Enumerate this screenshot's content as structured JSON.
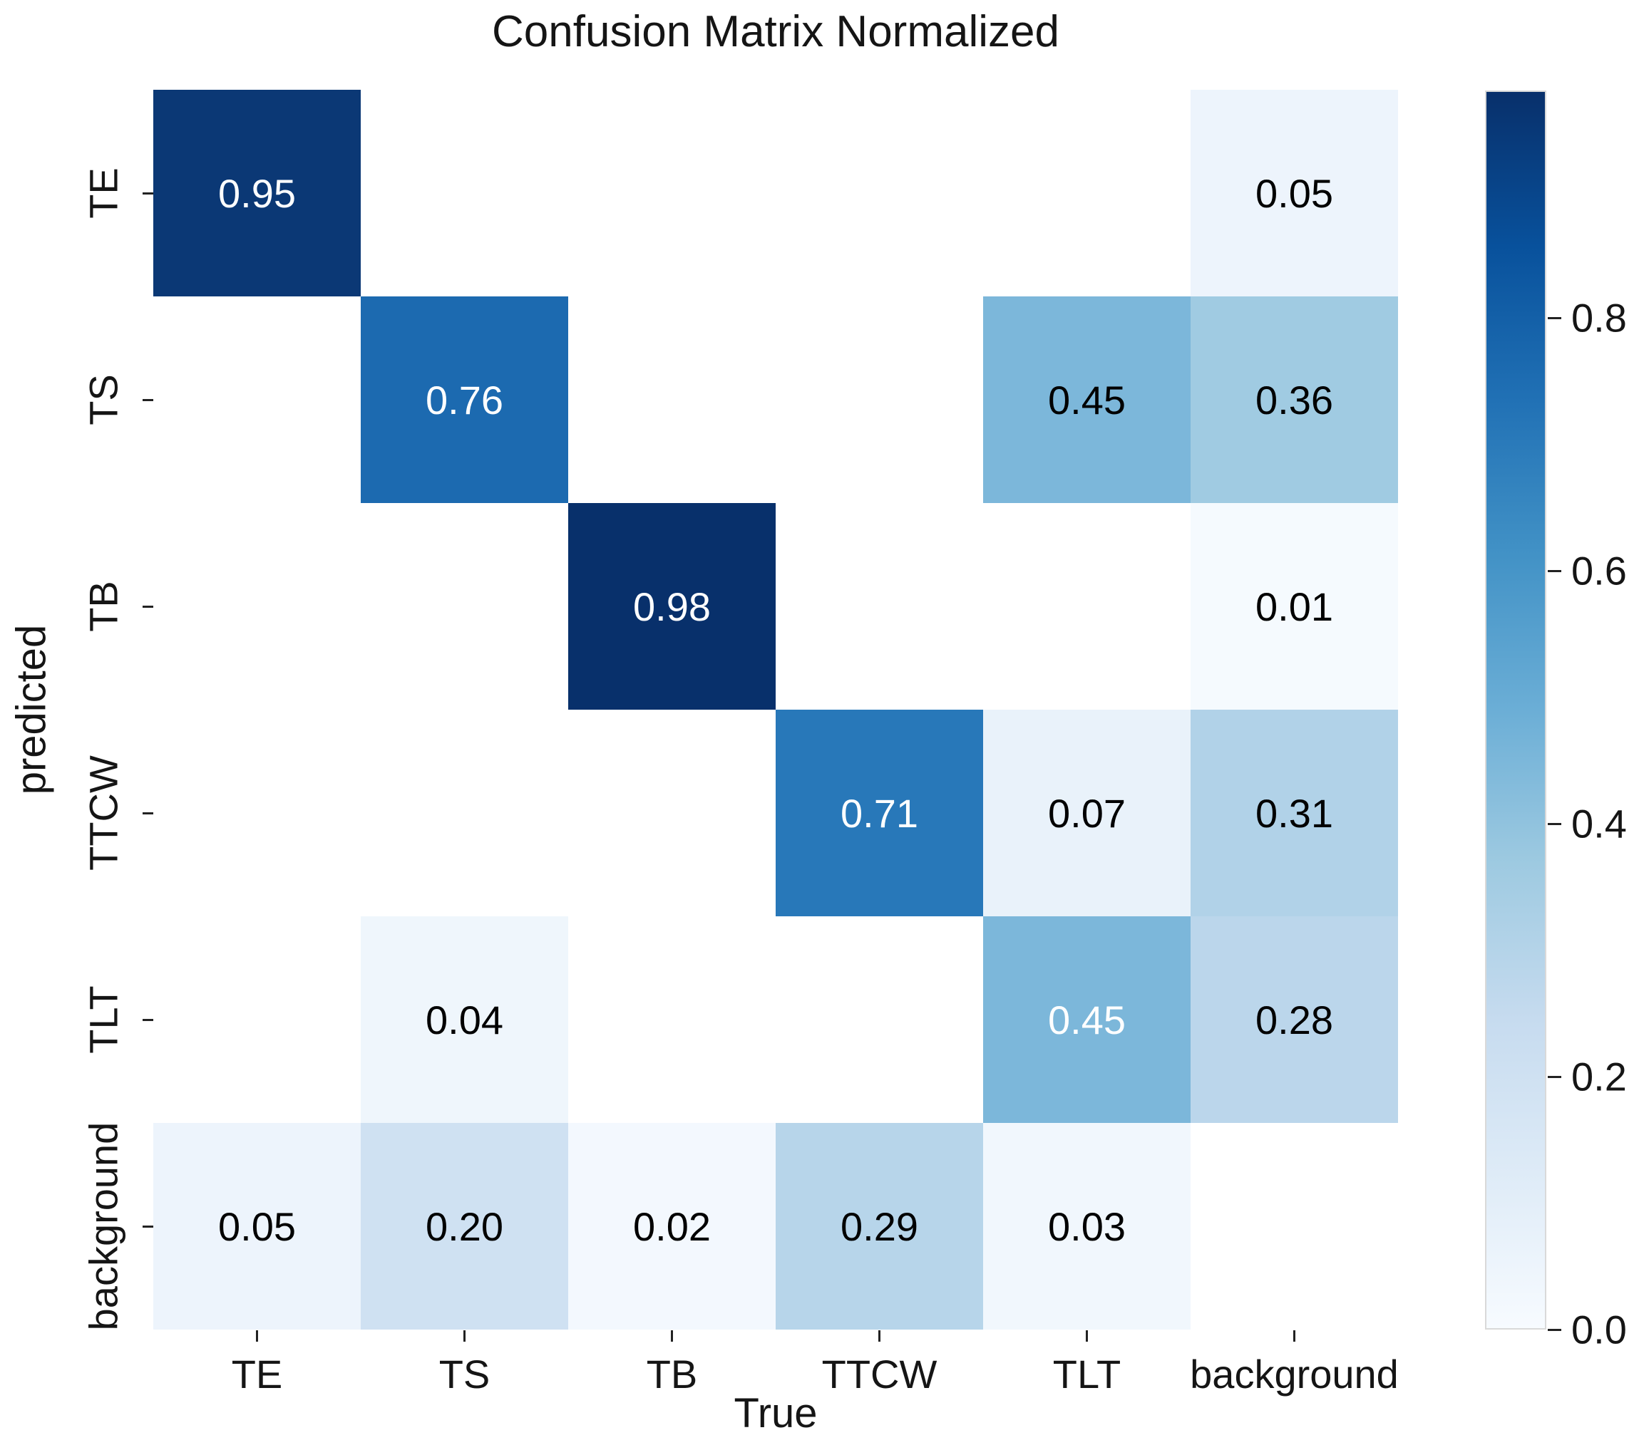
{
  "figure": {
    "title": "Confusion Matrix Normalized"
  },
  "chart_data": {
    "type": "heatmap",
    "title": "Confusion Matrix Normalized",
    "xlabel": "True",
    "ylabel": "predicted",
    "x_categories": [
      "TE",
      "TS",
      "TB",
      "TTCW",
      "TLT",
      "background"
    ],
    "y_categories": [
      "TE",
      "TS",
      "TB",
      "TTCW",
      "TLT",
      "background"
    ],
    "vmin": 0.0,
    "vmax": 0.98,
    "colormap": "Blues",
    "grid": false,
    "legend_position": "right-colorbar",
    "cells": [
      [
        {
          "value": 0.95,
          "label": "0.95",
          "bg": "#0b3875",
          "fg": "#ffffff"
        },
        null,
        null,
        null,
        null,
        {
          "value": 0.05,
          "label": "0.05",
          "bg": "#edf4fc",
          "fg": "#000000"
        }
      ],
      [
        null,
        {
          "value": 0.76,
          "label": "0.76",
          "bg": "#1c6ab0",
          "fg": "#ffffff"
        },
        null,
        null,
        {
          "value": 0.45,
          "label": "0.45",
          "bg": "#7cb7da",
          "fg": "#000000"
        },
        {
          "value": 0.36,
          "label": "0.36",
          "bg": "#a0cbe2",
          "fg": "#000000"
        }
      ],
      [
        null,
        null,
        {
          "value": 0.98,
          "label": "0.98",
          "bg": "#08306b",
          "fg": "#ffffff"
        },
        null,
        null,
        {
          "value": 0.01,
          "label": "0.01",
          "bg": "#f5fafe",
          "fg": "#000000"
        }
      ],
      [
        null,
        null,
        null,
        {
          "value": 0.71,
          "label": "0.71",
          "bg": "#2878b9",
          "fg": "#ffffff"
        },
        {
          "value": 0.07,
          "label": "0.07",
          "bg": "#e9f2fa",
          "fg": "#000000"
        },
        {
          "value": 0.31,
          "label": "0.31",
          "bg": "#b1d2e8",
          "fg": "#000000"
        }
      ],
      [
        null,
        {
          "value": 0.04,
          "label": "0.04",
          "bg": "#eff6fc",
          "fg": "#000000"
        },
        null,
        null,
        {
          "value": 0.45,
          "label": "0.45",
          "bg": "#7cb7da",
          "fg": "#ffffff"
        },
        {
          "value": 0.28,
          "label": "0.28",
          "bg": "#bbd6eb",
          "fg": "#000000"
        }
      ],
      [
        {
          "value": 0.05,
          "label": "0.05",
          "bg": "#edf4fc",
          "fg": "#000000"
        },
        {
          "value": 0.2,
          "label": "0.20",
          "bg": "#cfe1f2",
          "fg": "#000000"
        },
        {
          "value": 0.02,
          "label": "0.02",
          "bg": "#f3f8fe",
          "fg": "#000000"
        },
        {
          "value": 0.29,
          "label": "0.29",
          "bg": "#b7d5ea",
          "fg": "#000000"
        },
        {
          "value": 0.03,
          "label": "0.03",
          "bg": "#f1f7fd",
          "fg": "#000000"
        },
        null
      ]
    ],
    "colorbar": {
      "vmin": 0.0,
      "vmax": 0.98,
      "ticks": [
        {
          "value": 0.0,
          "label": "0.0"
        },
        {
          "value": 0.2,
          "label": "0.2"
        },
        {
          "value": 0.4,
          "label": "0.4"
        },
        {
          "value": 0.6,
          "label": "0.6"
        },
        {
          "value": 0.8,
          "label": "0.8"
        }
      ],
      "gradient_stops_bottom_to_top": [
        {
          "pos": 0.0,
          "color": "#f7fbff"
        },
        {
          "pos": 12.5,
          "color": "#deebf7"
        },
        {
          "pos": 25.0,
          "color": "#c6dbef"
        },
        {
          "pos": 37.5,
          "color": "#9ecae1"
        },
        {
          "pos": 50.0,
          "color": "#6baed6"
        },
        {
          "pos": 62.5,
          "color": "#4292c6"
        },
        {
          "pos": 75.0,
          "color": "#2171b5"
        },
        {
          "pos": 87.5,
          "color": "#08519c"
        },
        {
          "pos": 100.0,
          "color": "#08306b"
        }
      ]
    }
  }
}
